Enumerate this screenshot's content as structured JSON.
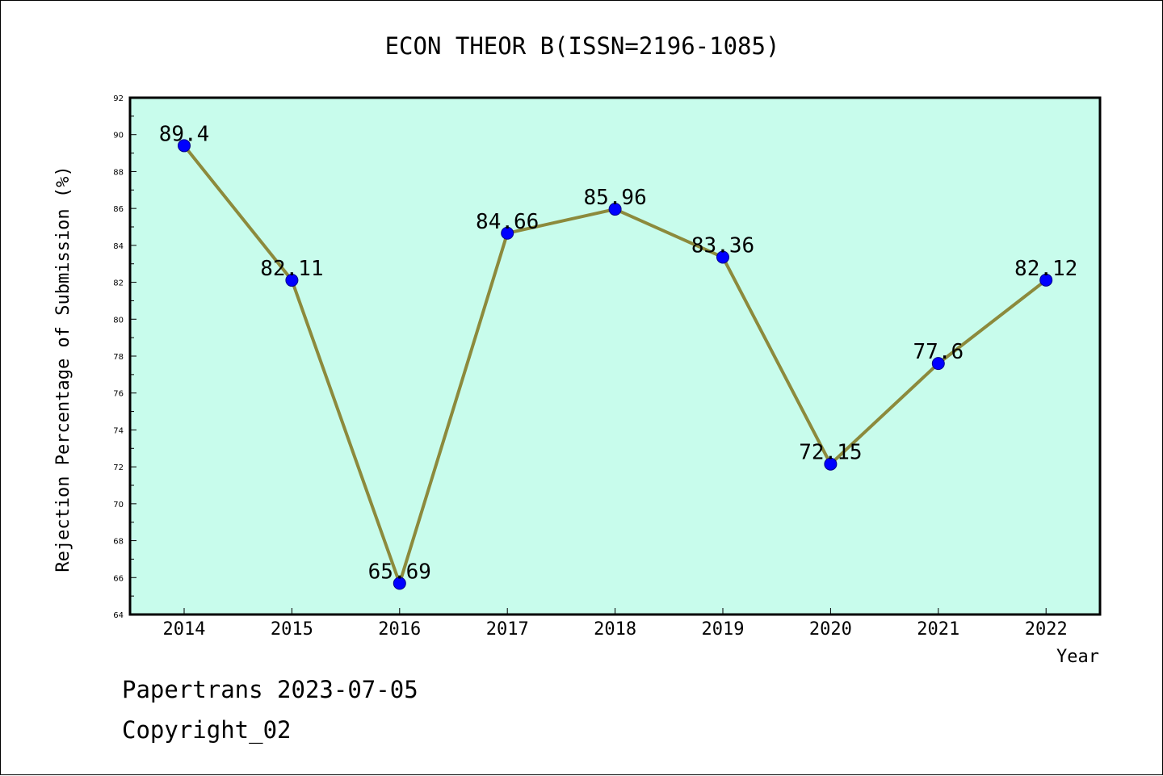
{
  "chart_data": {
    "type": "line",
    "title": "ECON THEOR B(ISSN=2196-1085)",
    "xlabel": "Year",
    "ylabel": "Rejection Percentage of Submission (%)",
    "categories": [
      "2014",
      "2015",
      "2016",
      "2017",
      "2018",
      "2019",
      "2020",
      "2021",
      "2022"
    ],
    "values": [
      89.4,
      82.11,
      65.69,
      84.66,
      85.96,
      83.36,
      72.15,
      77.6,
      82.12
    ],
    "value_labels": [
      "89.4",
      "82.11",
      "65.69",
      "84.66",
      "85.96",
      "83.36",
      "72.15",
      "77.6",
      "82.12"
    ],
    "ylim": [
      64,
      92
    ],
    "yticks": [
      64,
      66,
      68,
      70,
      72,
      74,
      76,
      78,
      80,
      82,
      84,
      86,
      88,
      90,
      92
    ],
    "grid": false,
    "colors": {
      "plot_background": "#c8fcec",
      "line": "#8c8a3c",
      "marker": "#0000ff"
    }
  },
  "footer": {
    "line1": "Papertrans 2023-07-05",
    "line2": "Copyright_02"
  }
}
